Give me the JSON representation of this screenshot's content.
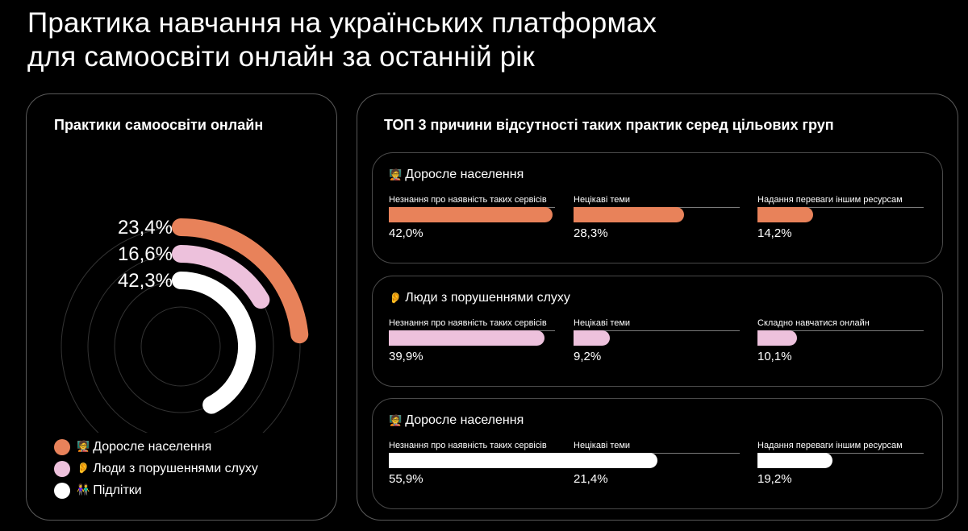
{
  "title_line1": "Практика навчання на українських платформах",
  "title_line2": "для самоосвіти онлайн за останній рік",
  "chart_data": [
    {
      "type": "radial-bar",
      "title": "Практики самоосвіти онлайн",
      "max": 100,
      "series": [
        {
          "name": "Доросле населення",
          "value": 23.4,
          "label": "23,4%",
          "color": "#e8825a"
        },
        {
          "name": "Люди з порушеннями слуху",
          "value": 16.6,
          "label": "16,6%",
          "color": "#edc1dc"
        },
        {
          "name": "Підлітки",
          "value": 42.3,
          "label": "42,3%",
          "color": "#ffffff"
        }
      ],
      "legend": [
        {
          "icon": "🧑‍🏫",
          "label": "Доросле населення",
          "color": "#e8825a"
        },
        {
          "icon": "👂",
          "label": "Люди з порушеннями слуху",
          "color": "#edc1dc"
        },
        {
          "icon": "👫",
          "label": "Підлітки",
          "color": "#ffffff"
        }
      ]
    },
    {
      "type": "bar",
      "title": "ТОП 3 причини відсутності таких практик серед цільових груп",
      "max": 100,
      "groups": [
        {
          "icon": "🧑‍🏫",
          "name": "Доросле населення",
          "color": "#e8825a",
          "items": [
            {
              "label": "Незнання про наявність таких сервісів",
              "value": 42.0,
              "display": "42,0%"
            },
            {
              "label": "Нецікаві теми",
              "value": 28.3,
              "display": "28,3%"
            },
            {
              "label": "Надання переваги іншим ресурсам",
              "value": 14.2,
              "display": "14,2%"
            }
          ]
        },
        {
          "icon": "👂",
          "name": "Люди з порушеннями слуху",
          "color": "#edc1dc",
          "items": [
            {
              "label": "Незнання про наявність таких сервісів",
              "value": 39.9,
              "display": "39,9%"
            },
            {
              "label": "Нецікаві теми",
              "value": 9.2,
              "display": "9,2%"
            },
            {
              "label": "Складно навчатися онлайн",
              "value": 10.1,
              "display": "10,1%"
            }
          ]
        },
        {
          "icon": "🧑‍🏫",
          "name": "Доросле населення",
          "color": "#ffffff",
          "items": [
            {
              "label": "Незнання про наявність таких сервісів",
              "value": 55.9,
              "display": "55,9%"
            },
            {
              "label": "Нецікаві теми",
              "value": 21.4,
              "display": "21,4%"
            },
            {
              "label": "Надання переваги іншим ресурсам",
              "value": 19.2,
              "display": "19,2%"
            }
          ]
        }
      ]
    }
  ]
}
